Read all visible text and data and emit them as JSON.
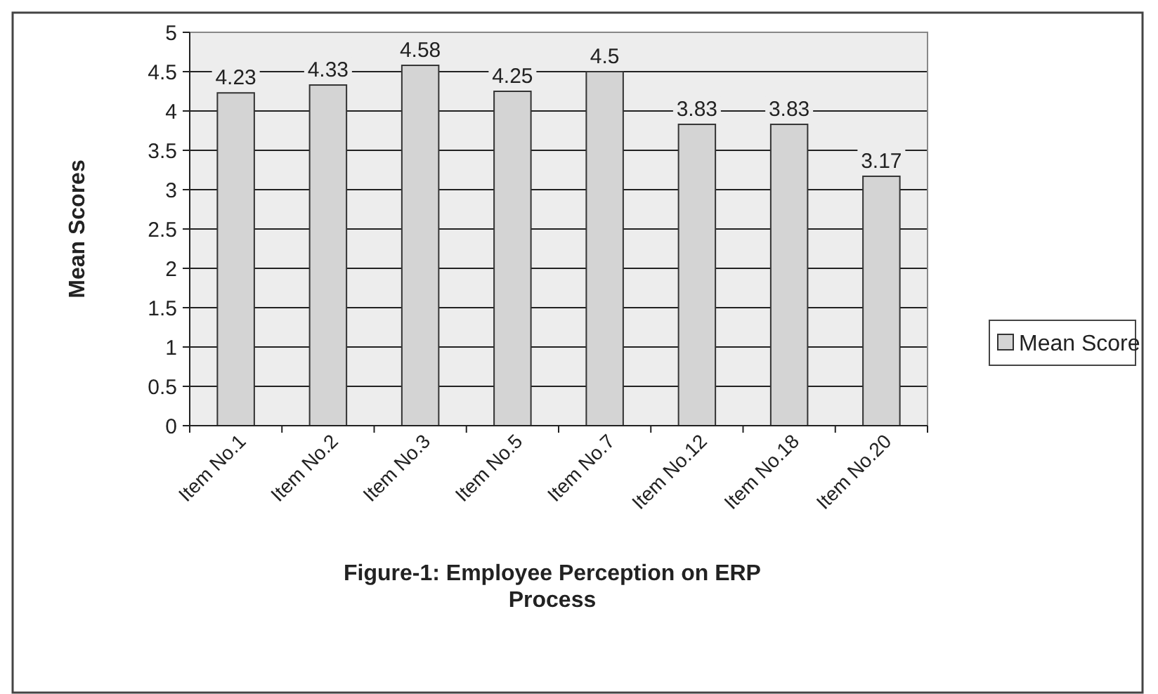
{
  "chart_data": {
    "type": "bar",
    "title": "Figure-1: Employee Perception on ERP Process",
    "ylabel": "Mean Scores",
    "categories": [
      "Item No.1",
      "Item No.2",
      "Item No.3",
      "Item No.5",
      "Item No.7",
      "Item No.12",
      "Item No.18",
      "Item No.20"
    ],
    "series": [
      {
        "name": "Mean Score",
        "color": "#d4d4d4",
        "values": [
          4.23,
          4.33,
          4.58,
          4.25,
          4.5,
          3.83,
          3.83,
          3.17
        ]
      }
    ],
    "ylim": [
      0,
      5
    ],
    "yticks": [
      0,
      0.5,
      1,
      1.5,
      2,
      2.5,
      3,
      3.5,
      4,
      4.5,
      5
    ],
    "grid": "y",
    "legend": "right",
    "data_labels": true
  }
}
